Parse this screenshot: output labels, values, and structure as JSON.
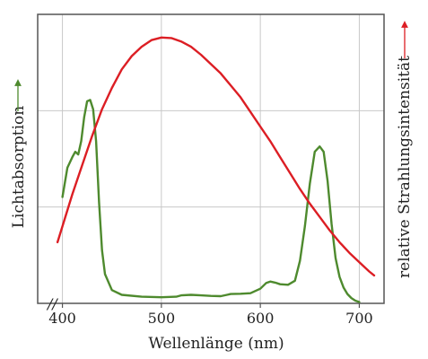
{
  "chart_data": {
    "type": "line",
    "xlabel": "Wellenlänge (nm)",
    "ylabel_left": "Lichtabsorption",
    "ylabel_right": "relative Strahlungsintensität",
    "xlim": [
      375,
      725
    ],
    "ylim": [
      0,
      1
    ],
    "x_ticks": [
      400,
      500,
      600,
      700
    ],
    "x_tick_labels": [
      "400",
      "500",
      "600",
      "700"
    ],
    "grid": true,
    "axis_break_marker": "//",
    "colors": {
      "absorption": "#4e8a2e",
      "intensity": "#dc1e24",
      "axis": "#555555",
      "grid": "#c8c8c8"
    },
    "series": [
      {
        "key": "absorption",
        "x": [
          400,
          405,
          410,
          413,
          416,
          419,
          422,
          425,
          428,
          431,
          434,
          437,
          440,
          443,
          450,
          460,
          480,
          500,
          515,
          520,
          530,
          540,
          550,
          560,
          570,
          580,
          590,
          600,
          606,
          610,
          615,
          620,
          628,
          635,
          640,
          645,
          650,
          655,
          660,
          664,
          668,
          672,
          676,
          680,
          684,
          688,
          692,
          696,
          700
        ],
        "y": [
          0.4,
          0.51,
          0.55,
          0.57,
          0.56,
          0.61,
          0.7,
          0.76,
          0.765,
          0.73,
          0.61,
          0.38,
          0.2,
          0.11,
          0.05,
          0.032,
          0.025,
          0.023,
          0.025,
          0.03,
          0.032,
          0.03,
          0.028,
          0.027,
          0.035,
          0.036,
          0.038,
          0.055,
          0.077,
          0.082,
          0.078,
          0.072,
          0.07,
          0.085,
          0.16,
          0.29,
          0.45,
          0.57,
          0.59,
          0.57,
          0.46,
          0.3,
          0.17,
          0.1,
          0.06,
          0.035,
          0.02,
          0.01,
          0.005
        ]
      },
      {
        "key": "intensity",
        "x": [
          395,
          400,
          410,
          420,
          430,
          440,
          450,
          460,
          470,
          480,
          490,
          500,
          510,
          520,
          530,
          540,
          550,
          560,
          570,
          580,
          590,
          600,
          610,
          620,
          630,
          640,
          650,
          660,
          670,
          680,
          690,
          700,
          710,
          715
        ],
        "y": [
          0.23,
          0.29,
          0.41,
          0.52,
          0.63,
          0.73,
          0.81,
          0.88,
          0.93,
          0.965,
          0.99,
          1.0,
          0.998,
          0.985,
          0.965,
          0.935,
          0.9,
          0.865,
          0.82,
          0.775,
          0.72,
          0.665,
          0.61,
          0.55,
          0.49,
          0.43,
          0.375,
          0.325,
          0.275,
          0.23,
          0.19,
          0.155,
          0.12,
          0.105
        ]
      }
    ]
  }
}
